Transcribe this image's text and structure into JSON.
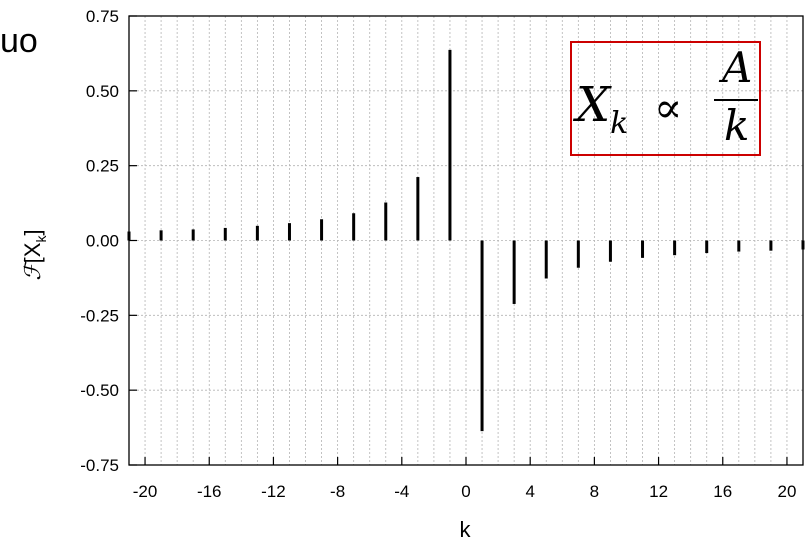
{
  "corner_text": "uo",
  "formula": {
    "lhs": "X",
    "sub": "k",
    "rel": "∝",
    "num": "A",
    "den": "k",
    "border_color": "#cc0000"
  },
  "chart_data": {
    "type": "stem",
    "xlabel": "k",
    "ylabel_script": "ℱ",
    "ylabel_text": "[X",
    "ylabel_sub": "k",
    "ylabel_close": "]",
    "xlim": [
      -21,
      21
    ],
    "ylim": [
      -0.75,
      0.75
    ],
    "xticks": [
      -20,
      -16,
      -12,
      -8,
      -4,
      0,
      4,
      8,
      12,
      16,
      20
    ],
    "yticks": [
      "0.75",
      "0.50",
      "0.25",
      "0.00",
      "-0.25",
      "-0.50",
      "-0.75"
    ],
    "grid": true,
    "stem_color": "#000000",
    "x": [
      -21,
      -19,
      -17,
      -15,
      -13,
      -11,
      -9,
      -7,
      -5,
      -3,
      -1,
      1,
      3,
      5,
      7,
      9,
      11,
      13,
      15,
      17,
      19,
      21
    ],
    "y": [
      0.03,
      0.034,
      0.037,
      0.042,
      0.049,
      0.058,
      0.071,
      0.091,
      0.127,
      0.212,
      0.637,
      -0.637,
      -0.212,
      -0.127,
      -0.091,
      -0.071,
      -0.058,
      -0.049,
      -0.042,
      -0.037,
      -0.034,
      -0.03
    ]
  }
}
